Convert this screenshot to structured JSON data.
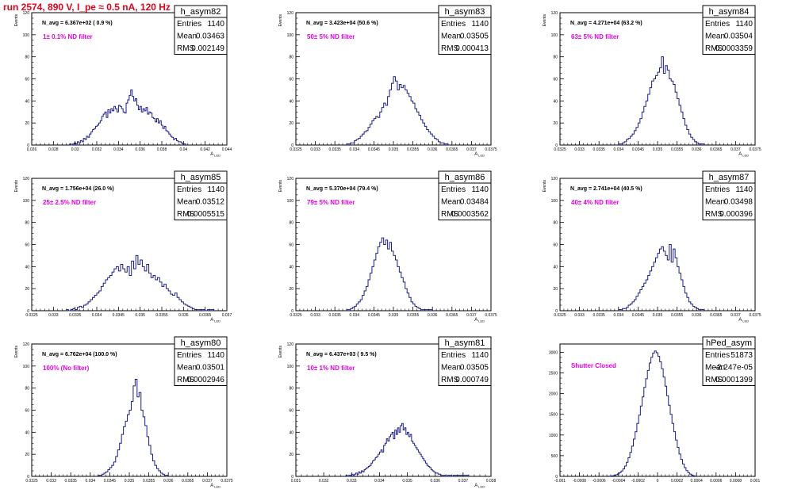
{
  "page": {
    "title": "run 2574,   890 V, I_pe ≈ 0.5 nA, 120 Hz"
  },
  "colors": {
    "histogram": "#1c1c8c",
    "title_red": "#e8001a",
    "filter_label": "#e800e8",
    "frame": "#000000",
    "grid": "#b4b4b4"
  },
  "chart_data": [
    {
      "type": "histogram",
      "name": "h_asym82",
      "navg": "N_avg = 6.367e+02 ( 0.9 %)",
      "filter": "1± 0.1% ND filter",
      "stats": [
        [
          "Entries",
          "1140"
        ],
        [
          "Mean",
          "0.03463"
        ],
        [
          "RMS",
          "0.002149"
        ]
      ],
      "xlabel": "A_LED",
      "ylabel": "Events",
      "xlim": [
        0.026,
        0.044
      ],
      "ylim": [
        0,
        120
      ],
      "yticks": [
        0,
        20,
        40,
        60,
        80,
        100,
        120
      ],
      "xticks": [
        0.026,
        0.028,
        0.03,
        0.032,
        0.034,
        0.036,
        0.038,
        0.04,
        0.042,
        0.044
      ],
      "xtick_labels": [
        "0.026",
        "0.028",
        "0.03",
        "0.032",
        "0.034",
        "0.036",
        "0.038",
        "0.04",
        "0.042",
        "0.044"
      ],
      "bin_edges": [
        0.0295,
        0.0402
      ],
      "counts": [
        1,
        0,
        1,
        2,
        1,
        3,
        2,
        4,
        3,
        6,
        5,
        8,
        7,
        10,
        12,
        14,
        15,
        17,
        18,
        20,
        22,
        26,
        28,
        30,
        25,
        32,
        29,
        33,
        31,
        35,
        33,
        30,
        36,
        35,
        33,
        30,
        29,
        38,
        41,
        45,
        50,
        44,
        40,
        42,
        36,
        32,
        35,
        30,
        33,
        31,
        34,
        28,
        30,
        29,
        25,
        24,
        21,
        24,
        20,
        22,
        18,
        15,
        17,
        13,
        12,
        10,
        8,
        7,
        5,
        6,
        4,
        3,
        3,
        2,
        1,
        1
      ]
    },
    {
      "type": "histogram",
      "name": "h_asym83",
      "navg": "N_avg = 3.423e+04 (50.6 %)",
      "filter": "50± 5% ND filter",
      "stats": [
        [
          "Entries",
          "1140"
        ],
        [
          "Mean",
          "0.03505"
        ],
        [
          "RMS",
          "0.000413"
        ]
      ],
      "xlabel": "A_LED",
      "ylabel": "Events",
      "xlim": [
        0.0325,
        0.0375
      ],
      "ylim": [
        0,
        120
      ],
      "yticks": [
        0,
        20,
        40,
        60,
        80,
        100,
        120
      ],
      "xticks": [
        0.0325,
        0.033,
        0.0335,
        0.034,
        0.0345,
        0.035,
        0.0355,
        0.036,
        0.0365,
        0.037,
        0.0375
      ],
      "xtick_labels": [
        "0.0325",
        "0.033",
        "0.0335",
        "0.034",
        "0.0345",
        "0.035",
        "0.0355",
        "0.036",
        "0.0365",
        "0.037",
        "0.0375"
      ],
      "bin_edges": [
        0.0338,
        0.0364
      ],
      "counts": [
        1,
        1,
        2,
        2,
        4,
        5,
        6,
        8,
        10,
        12,
        13,
        16,
        19,
        22,
        24,
        26,
        25,
        30,
        34,
        38,
        36,
        44,
        50,
        56,
        62,
        58,
        50,
        55,
        52,
        54,
        50,
        47,
        44,
        40,
        38,
        33,
        30,
        27,
        23,
        20,
        17,
        14,
        12,
        10,
        8,
        6,
        5,
        3,
        2,
        2,
        1,
        1
      ]
    },
    {
      "type": "histogram",
      "name": "h_asym84",
      "navg": "N_avg = 4.271e+04 (63.2 %)",
      "filter": "63± 5% ND filter",
      "stats": [
        [
          "Entries",
          "1140"
        ],
        [
          "Mean",
          "0.03504"
        ],
        [
          "RMS",
          "0.0003359"
        ]
      ],
      "xlabel": "A_LED",
      "ylabel": "Events",
      "xlim": [
        0.0325,
        0.0375
      ],
      "ylim": [
        0,
        120
      ],
      "yticks": [
        0,
        20,
        40,
        60,
        80,
        100,
        120
      ],
      "xticks": [
        0.0325,
        0.033,
        0.0335,
        0.034,
        0.0345,
        0.035,
        0.0355,
        0.036,
        0.0365,
        0.037,
        0.0375
      ],
      "xtick_labels": [
        "0.0325",
        "0.033",
        "0.0335",
        "0.034",
        "0.0345",
        "0.035",
        "0.0355",
        "0.036",
        "0.0365",
        "0.037",
        "0.0375"
      ],
      "bin_edges": [
        0.034,
        0.0362
      ],
      "counts": [
        1,
        1,
        2,
        3,
        5,
        6,
        8,
        10,
        13,
        16,
        20,
        24,
        30,
        35,
        40,
        46,
        52,
        58,
        60,
        63,
        66,
        70,
        80,
        65,
        72,
        68,
        60,
        58,
        55,
        48,
        42,
        36,
        30,
        24,
        18,
        14,
        10,
        7,
        5,
        3,
        2,
        1,
        1,
        1
      ]
    },
    {
      "type": "histogram",
      "name": "h_asym85",
      "navg": "N_avg = 1.756e+04 (26.0 %)",
      "filter": "25± 2.5% ND filter",
      "stats": [
        [
          "Entries",
          "1140"
        ],
        [
          "Mean",
          "0.03512"
        ],
        [
          "RMS",
          "0.0005515"
        ]
      ],
      "xlabel": "A_LED",
      "ylabel": "Events",
      "xlim": [
        0.0325,
        0.037
      ],
      "ylim": [
        0,
        120
      ],
      "yticks": [
        0,
        20,
        40,
        60,
        80,
        100,
        120
      ],
      "xticks": [
        0.0325,
        0.033,
        0.0335,
        0.034,
        0.0345,
        0.035,
        0.0355,
        0.036,
        0.0365,
        0.037
      ],
      "xtick_labels": [
        "0.0325",
        "0.033",
        "0.0335",
        "0.034",
        "0.0345",
        "0.035",
        "0.0355",
        "0.036",
        "0.0365",
        "0.037"
      ],
      "bin_edges": [
        0.0333,
        0.0367
      ],
      "counts": [
        1,
        0,
        1,
        2,
        1,
        3,
        4,
        3,
        5,
        6,
        8,
        10,
        12,
        14,
        16,
        18,
        22,
        25,
        28,
        30,
        32,
        35,
        38,
        40,
        36,
        42,
        38,
        35,
        40,
        32,
        45,
        38,
        50,
        42,
        46,
        40,
        36,
        42,
        34,
        30,
        32,
        28,
        30,
        26,
        22,
        24,
        20,
        18,
        15,
        14,
        16,
        12,
        10,
        8,
        6,
        5,
        4,
        3,
        2,
        1,
        1,
        1,
        1,
        1,
        0,
        1,
        1,
        1
      ]
    },
    {
      "type": "histogram",
      "name": "h_asym86",
      "navg": "N_avg = 5.370e+04 (79.4 %)",
      "filter": "79± 5% ND filter",
      "stats": [
        [
          "Entries",
          "1140"
        ],
        [
          "Mean",
          "0.03484"
        ],
        [
          "RMS",
          "0.0003562"
        ]
      ],
      "xlabel": "A_LED",
      "ylabel": "Events",
      "xlim": [
        0.0325,
        0.0375
      ],
      "ylim": [
        0,
        120
      ],
      "yticks": [
        0,
        20,
        40,
        60,
        80,
        100,
        120
      ],
      "xticks": [
        0.0325,
        0.033,
        0.0335,
        0.034,
        0.0345,
        0.035,
        0.0355,
        0.036,
        0.0365,
        0.037,
        0.0375
      ],
      "xtick_labels": [
        "0.0325",
        "0.033",
        "0.0335",
        "0.034",
        "0.0345",
        "0.035",
        "0.0355",
        "0.036",
        "0.0365",
        "0.037",
        "0.0375"
      ],
      "bin_edges": [
        0.0338,
        0.036
      ],
      "counts": [
        1,
        1,
        2,
        3,
        4,
        6,
        8,
        10,
        14,
        18,
        22,
        28,
        34,
        40,
        46,
        52,
        58,
        62,
        66,
        60,
        64,
        56,
        62,
        54,
        50,
        46,
        40,
        35,
        30,
        26,
        20,
        16,
        12,
        8,
        6,
        4,
        3,
        2,
        1,
        1,
        1,
        1,
        1,
        1
      ]
    },
    {
      "type": "histogram",
      "name": "h_asym87",
      "navg": "N_avg = 2.741e+04 (40.5 %)",
      "filter": "40± 4% ND filter",
      "stats": [
        [
          "Entries",
          "1140"
        ],
        [
          "Mean",
          "0.03498"
        ],
        [
          "RMS",
          "0.000396"
        ]
      ],
      "xlabel": "A_LED",
      "ylabel": "Events",
      "xlim": [
        0.0325,
        0.0375
      ],
      "ylim": [
        0,
        120
      ],
      "yticks": [
        0,
        20,
        40,
        60,
        80,
        100,
        120
      ],
      "xticks": [
        0.0325,
        0.033,
        0.0335,
        0.034,
        0.0345,
        0.035,
        0.0355,
        0.036,
        0.0365,
        0.037,
        0.0375
      ],
      "xtick_labels": [
        "0.0325",
        "0.033",
        "0.0335",
        "0.034",
        "0.0345",
        "0.035",
        "0.0355",
        "0.036",
        "0.0365",
        "0.037",
        "0.0375"
      ],
      "bin_edges": [
        0.034,
        0.0362
      ],
      "counts": [
        1,
        1,
        2,
        2,
        3,
        5,
        6,
        8,
        10,
        13,
        16,
        19,
        22,
        25,
        28,
        32,
        36,
        40,
        44,
        48,
        52,
        56,
        58,
        54,
        50,
        46,
        60,
        44,
        56,
        48,
        40,
        34,
        28,
        22,
        16,
        12,
        8,
        6,
        4,
        3,
        2,
        1,
        1,
        1
      ]
    },
    {
      "type": "histogram",
      "name": "h_asym80",
      "navg": "N_avg = 6.762e+04 (100.0 %)",
      "filter": "100% (No filter)",
      "stats": [
        [
          "Entries",
          "1140"
        ],
        [
          "Mean",
          "0.03501"
        ],
        [
          "RMS",
          "0.0002946"
        ]
      ],
      "xlabel": "A_LED",
      "ylabel": "Events",
      "xlim": [
        0.0325,
        0.0375
      ],
      "ylim": [
        0,
        120
      ],
      "yticks": [
        0,
        20,
        40,
        60,
        80,
        100,
        120
      ],
      "xticks": [
        0.0325,
        0.033,
        0.0335,
        0.034,
        0.0345,
        0.035,
        0.0355,
        0.036,
        0.0365,
        0.037,
        0.0375
      ],
      "xtick_labels": [
        "0.0325",
        "0.033",
        "0.0335",
        "0.034",
        "0.0345",
        "0.035",
        "0.0355",
        "0.036",
        "0.0365",
        "0.037",
        "0.0375"
      ],
      "bin_edges": [
        0.0342,
        0.036
      ],
      "counts": [
        1,
        1,
        2,
        3,
        4,
        6,
        8,
        10,
        13,
        18,
        24,
        30,
        38,
        45,
        50,
        56,
        60,
        68,
        82,
        88,
        72,
        76,
        60,
        54,
        46,
        36,
        28,
        20,
        14,
        10,
        7,
        5,
        3,
        2,
        1,
        1
      ]
    },
    {
      "type": "histogram",
      "name": "h_asym81",
      "navg": "N_avg = 6.437e+03 ( 9.5 %)",
      "filter": "10± 1% ND filter",
      "stats": [
        [
          "Entries",
          "1140"
        ],
        [
          "Mean",
          "0.03505"
        ],
        [
          "RMS",
          "0.000749"
        ]
      ],
      "xlabel": "A_LED",
      "ylabel": "Events",
      "xlim": [
        0.031,
        0.038
      ],
      "ylim": [
        0,
        120
      ],
      "yticks": [
        0,
        20,
        40,
        60,
        80,
        100,
        120
      ],
      "xticks": [
        0.031,
        0.032,
        0.033,
        0.034,
        0.035,
        0.036,
        0.037,
        0.038
      ],
      "xtick_labels": [
        "0.031",
        "0.032",
        "0.033",
        "0.034",
        "0.035",
        "0.036",
        "0.037",
        "0.038"
      ],
      "bin_edges": [
        0.0328,
        0.0372
      ],
      "counts": [
        1,
        0,
        1,
        1,
        2,
        1,
        2,
        3,
        2,
        4,
        3,
        5,
        4,
        6,
        7,
        8,
        9,
        10,
        12,
        14,
        15,
        17,
        18,
        20,
        22,
        24,
        22,
        28,
        30,
        34,
        32,
        36,
        38,
        40,
        34,
        42,
        38,
        44,
        40,
        46,
        48,
        42,
        44,
        38,
        40,
        36,
        38,
        32,
        30,
        28,
        26,
        24,
        22,
        20,
        18,
        16,
        14,
        12,
        10,
        9,
        8,
        6,
        5,
        4,
        3,
        3,
        2,
        2,
        1,
        1,
        1,
        1,
        0,
        1,
        1,
        1,
        0,
        1,
        1,
        1,
        1,
        1,
        1,
        1,
        1,
        1,
        1,
        1
      ]
    },
    {
      "type": "histogram",
      "name": "hPed_asym",
      "navg": "",
      "filter": "Shutter Closed",
      "stats": [
        [
          "Entries",
          "51873"
        ],
        [
          "Mean",
          "-2.247e-05"
        ],
        [
          "RMS",
          "0.0001399"
        ]
      ],
      "xlabel": "",
      "ylabel": "",
      "xlim": [
        -0.001,
        0.001
      ],
      "ylim": [
        0,
        3200
      ],
      "yticks": [
        0,
        500,
        1000,
        1500,
        2000,
        2500,
        3000
      ],
      "xticks": [
        -0.001,
        -0.0008,
        -0.0006,
        -0.0004,
        -0.0002,
        0,
        0.0002,
        0.0004,
        0.0006,
        0.0008,
        0.001
      ],
      "xtick_labels": [
        "-0.001",
        "-0.0008",
        "-0.0006",
        "-0.0004",
        "-0.0002",
        "0",
        "0.0002",
        "0.0004",
        "0.0006",
        "0.0008",
        "0.001"
      ],
      "bin_edges": [
        -0.0005,
        0.0004
      ],
      "counts": [
        5,
        10,
        15,
        25,
        40,
        60,
        90,
        130,
        180,
        250,
        340,
        450,
        580,
        730,
        900,
        1080,
        1280,
        1480,
        1700,
        1920,
        2150,
        2360,
        2560,
        2740,
        2880,
        2980,
        3030,
        2990,
        2900,
        2770,
        2600,
        2400,
        2180,
        1950,
        1720,
        1500,
        1280,
        1080,
        880,
        700,
        540,
        410,
        300,
        210,
        140,
        90,
        55,
        30,
        15,
        8
      ]
    }
  ]
}
